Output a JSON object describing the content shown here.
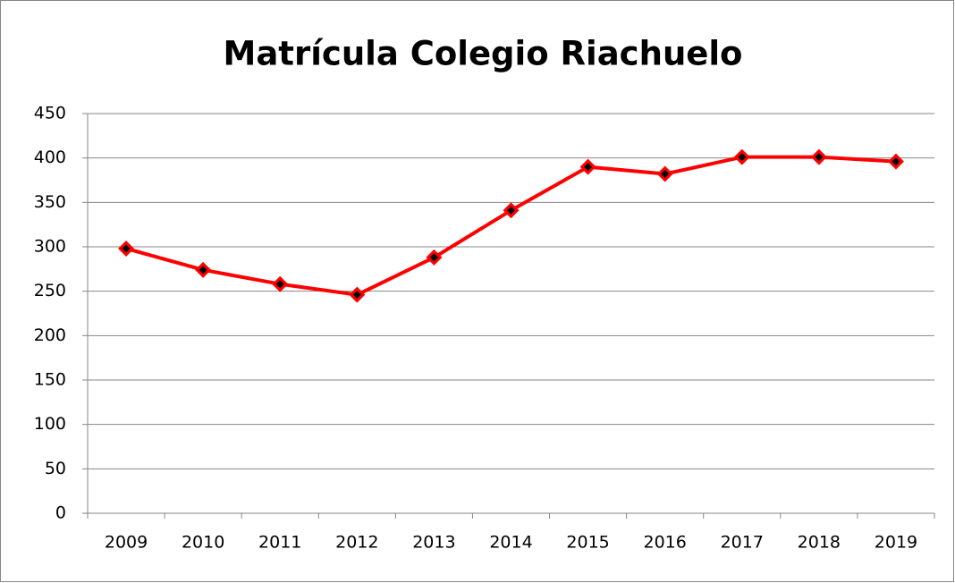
{
  "chart_data": {
    "type": "line",
    "title": "Matrícula Colegio Riachuelo",
    "categories": [
      "2009",
      "2010",
      "2011",
      "2012",
      "2013",
      "2014",
      "2015",
      "2016",
      "2017",
      "2018",
      "2019"
    ],
    "values": [
      298,
      274,
      258,
      246,
      288,
      341,
      390,
      382,
      401,
      401,
      396
    ],
    "color": "#ff0000",
    "marker_color": "#000000",
    "ylim": [
      0,
      450
    ],
    "yticks": [
      0,
      50,
      100,
      150,
      200,
      250,
      300,
      350,
      400,
      450
    ],
    "grid": true
  }
}
